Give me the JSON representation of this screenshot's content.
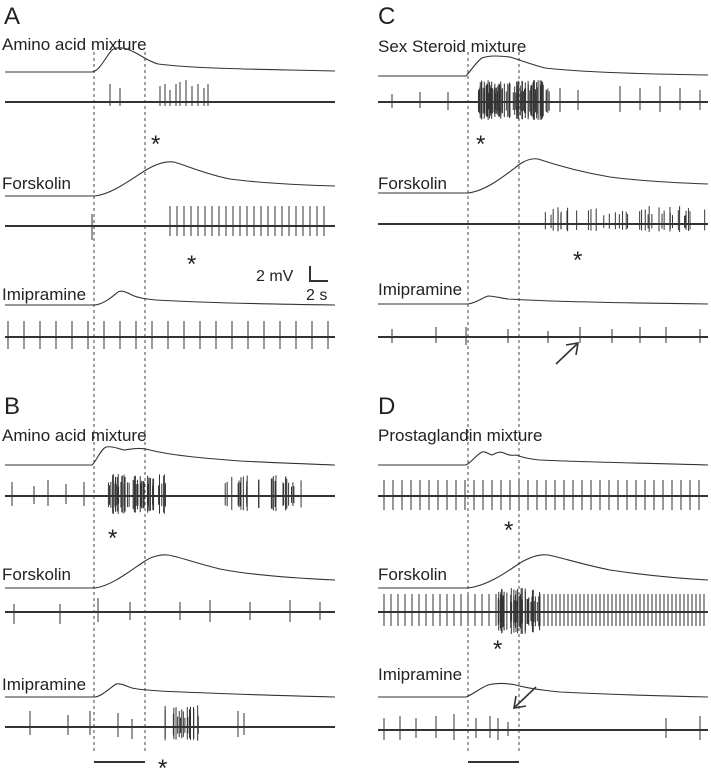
{
  "figure": {
    "panels": [
      {
        "letter": "A",
        "traces": [
          {
            "label": "Amino acid mixture"
          },
          {
            "label": "Forskolin"
          },
          {
            "label": "Imipramine"
          }
        ]
      },
      {
        "letter": "B",
        "traces": [
          {
            "label": "Amino acid mixture"
          },
          {
            "label": "Forskolin"
          },
          {
            "label": "Imipramine"
          }
        ]
      },
      {
        "letter": "C",
        "traces": [
          {
            "label": "Sex Steroid mixture"
          },
          {
            "label": "Forskolin"
          },
          {
            "label": "Imipramine"
          }
        ]
      },
      {
        "letter": "D",
        "traces": [
          {
            "label": "Prostaglandin mixture"
          },
          {
            "label": "Forskolin"
          },
          {
            "label": "Imipramine"
          }
        ]
      }
    ],
    "scale_bar": {
      "voltage": "2 mV",
      "time": "2 s"
    },
    "markers": {
      "asterisk": "*"
    }
  }
}
